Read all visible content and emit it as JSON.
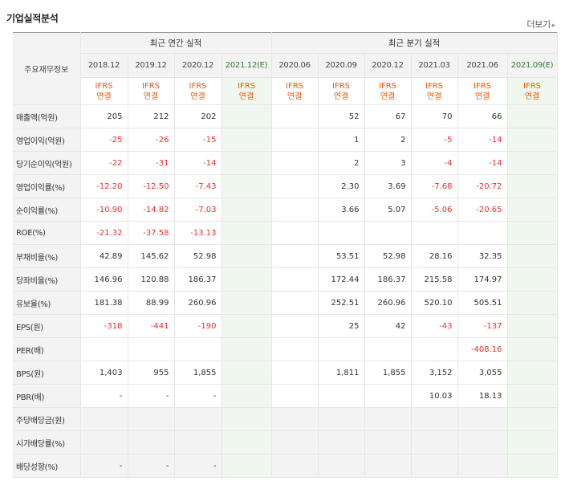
{
  "title": "기업실적분석",
  "more_label": "더보기",
  "corner_label": "주요재무정보",
  "groups": {
    "annual": "최근 연간 실적",
    "quarter": "최근 분기 실적"
  },
  "columns": [
    {
      "date": "2018.12",
      "sub1": "IFRS",
      "sub2": "연결",
      "est": false
    },
    {
      "date": "2019.12",
      "sub1": "IFRS",
      "sub2": "연결",
      "est": false
    },
    {
      "date": "2020.12",
      "sub1": "IFRS",
      "sub2": "연결",
      "est": false
    },
    {
      "date": "2021.12(E)",
      "sub1": "IFRS",
      "sub2": "연결",
      "est": true
    },
    {
      "date": "2020.06",
      "sub1": "IFRS",
      "sub2": "연결",
      "est": false
    },
    {
      "date": "2020.09",
      "sub1": "IFRS",
      "sub2": "연결",
      "est": false
    },
    {
      "date": "2020.12",
      "sub1": "IFRS",
      "sub2": "연결",
      "est": false
    },
    {
      "date": "2021.03",
      "sub1": "IFRS",
      "sub2": "연결",
      "est": false
    },
    {
      "date": "2021.06",
      "sub1": "IFRS",
      "sub2": "연결",
      "est": false
    },
    {
      "date": "2021.09(E)",
      "sub1": "IFRS",
      "sub2": "연결",
      "est": true
    }
  ],
  "rows": [
    {
      "label": "매출액(억원)",
      "values": [
        "205",
        "212",
        "202",
        "",
        "",
        "52",
        "67",
        "70",
        "66",
        ""
      ]
    },
    {
      "label": "영업이익(억원)",
      "values": [
        "-25",
        "-26",
        "-15",
        "",
        "",
        "1",
        "2",
        "-5",
        "-14",
        ""
      ]
    },
    {
      "label": "당기순이익(억원)",
      "values": [
        "-22",
        "-31",
        "-14",
        "",
        "",
        "2",
        "3",
        "-4",
        "-14",
        ""
      ]
    },
    {
      "label": "영업이익률(%)",
      "values": [
        "-12.20",
        "-12.50",
        "-7.43",
        "",
        "",
        "2.30",
        "3.69",
        "-7.68",
        "-20.72",
        ""
      ]
    },
    {
      "label": "순이익률(%)",
      "values": [
        "-10.90",
        "-14.82",
        "-7.03",
        "",
        "",
        "3.66",
        "5.07",
        "-5.06",
        "-20.65",
        ""
      ]
    },
    {
      "label": "ROE(%)",
      "values": [
        "-21.32",
        "-37.58",
        "-13.13",
        "",
        "",
        "",
        "",
        "",
        "",
        ""
      ]
    },
    {
      "label": "부채비율(%)",
      "values": [
        "42.89",
        "145.62",
        "52.98",
        "",
        "",
        "53.51",
        "52.98",
        "28.16",
        "32.35",
        ""
      ]
    },
    {
      "label": "당좌비율(%)",
      "values": [
        "146.96",
        "120.88",
        "186.37",
        "",
        "",
        "172.44",
        "186.37",
        "215.58",
        "174.97",
        ""
      ]
    },
    {
      "label": "유보율(%)",
      "values": [
        "181.38",
        "88.99",
        "260.96",
        "",
        "",
        "252.51",
        "260.96",
        "520.10",
        "505.51",
        ""
      ]
    },
    {
      "label": "EPS(원)",
      "values": [
        "-318",
        "-441",
        "-190",
        "",
        "",
        "25",
        "42",
        "-43",
        "-137",
        ""
      ]
    },
    {
      "label": "PER(배)",
      "values": [
        "",
        "",
        "",
        "",
        "",
        "",
        "",
        "",
        "-408.16",
        ""
      ]
    },
    {
      "label": "BPS(원)",
      "values": [
        "1,403",
        "955",
        "1,855",
        "",
        "",
        "1,811",
        "1,855",
        "3,152",
        "3,055",
        ""
      ]
    },
    {
      "label": "PBR(배)",
      "values": [
        "-",
        "-",
        "-",
        "",
        "",
        "",
        "",
        "10.03",
        "18.13",
        ""
      ]
    },
    {
      "label": "주당배당금(원)",
      "values": [
        "",
        "",
        "",
        "",
        "",
        "",
        "",
        "",
        "",
        ""
      ]
    },
    {
      "label": "시가배당률(%)",
      "values": [
        "",
        "",
        "",
        "",
        "",
        "",
        "",
        "",
        "",
        ""
      ]
    },
    {
      "label": "배당성향(%)",
      "values": [
        "-",
        "-",
        "-",
        "",
        "",
        "",
        "",
        "",
        "",
        ""
      ]
    }
  ]
}
